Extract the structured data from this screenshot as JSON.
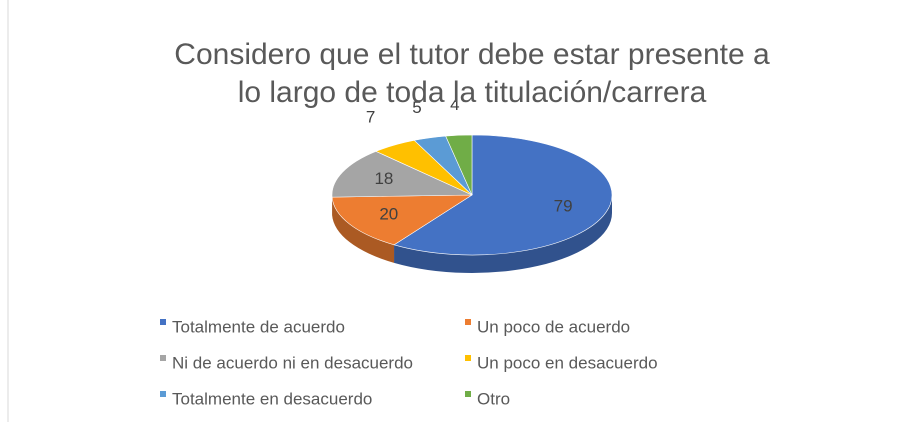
{
  "chart_data": {
    "type": "pie3d",
    "title": "Considero que el tutor debe estar presente a lo largo de toda la titulación/carrera",
    "categories": [
      "Totalmente de acuerdo",
      "Un poco de acuerdo",
      "Ni de acuerdo ni en desacuerdo",
      "Un poco en desacuerdo",
      "Totalmente en desacuerdo",
      "Otro"
    ],
    "values": [
      79,
      20,
      18,
      7,
      5,
      4
    ],
    "colors": [
      "#4472c4",
      "#ed7d31",
      "#a5a5a5",
      "#ffc000",
      "#5b9bd5",
      "#70ad47"
    ],
    "legend": "bottom"
  }
}
